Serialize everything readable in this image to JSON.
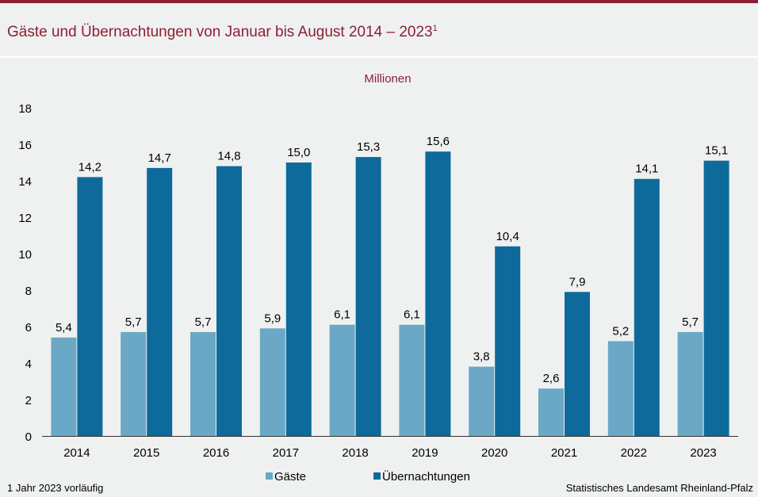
{
  "header": {
    "title": "Gäste und Übernachtungen von Januar bis August 2014 – 2023",
    "title_footnote_mark": "1"
  },
  "footer": {
    "footnote": "1 Jahr 2023 vorläufig",
    "source": "Statistisches Landesamt Rheinland-Pfalz"
  },
  "colors": {
    "accent": "#8c1f35",
    "gaeste": "#6aa8c6",
    "uebernachtungen": "#0d6a9b"
  },
  "chart_data": {
    "type": "bar",
    "unit_label": "Millionen",
    "categories": [
      "2014",
      "2015",
      "2016",
      "2017",
      "2018",
      "2019",
      "2020",
      "2021",
      "2022",
      "2023"
    ],
    "series": [
      {
        "name": "Gäste",
        "values": [
          5.4,
          5.7,
          5.7,
          5.9,
          6.1,
          6.1,
          3.8,
          2.6,
          5.2,
          5.7
        ],
        "labels": [
          "5,4",
          "5,7",
          "5,7",
          "5,9",
          "6,1",
          "6,1",
          "3,8",
          "2,6",
          "5,2",
          "5,7"
        ]
      },
      {
        "name": "Übernachtungen",
        "values": [
          14.2,
          14.7,
          14.8,
          15.0,
          15.3,
          15.6,
          10.4,
          7.9,
          14.1,
          15.1
        ],
        "labels": [
          "14,2",
          "14,7",
          "14,8",
          "15,0",
          "15,3",
          "15,6",
          "10,4",
          "7,9",
          "14,1",
          "15,1"
        ]
      }
    ],
    "ylim": [
      0,
      18
    ],
    "yticks": [
      0,
      2,
      4,
      6,
      8,
      10,
      12,
      14,
      16,
      18
    ],
    "legend_position": "bottom-center",
    "grid": false
  }
}
